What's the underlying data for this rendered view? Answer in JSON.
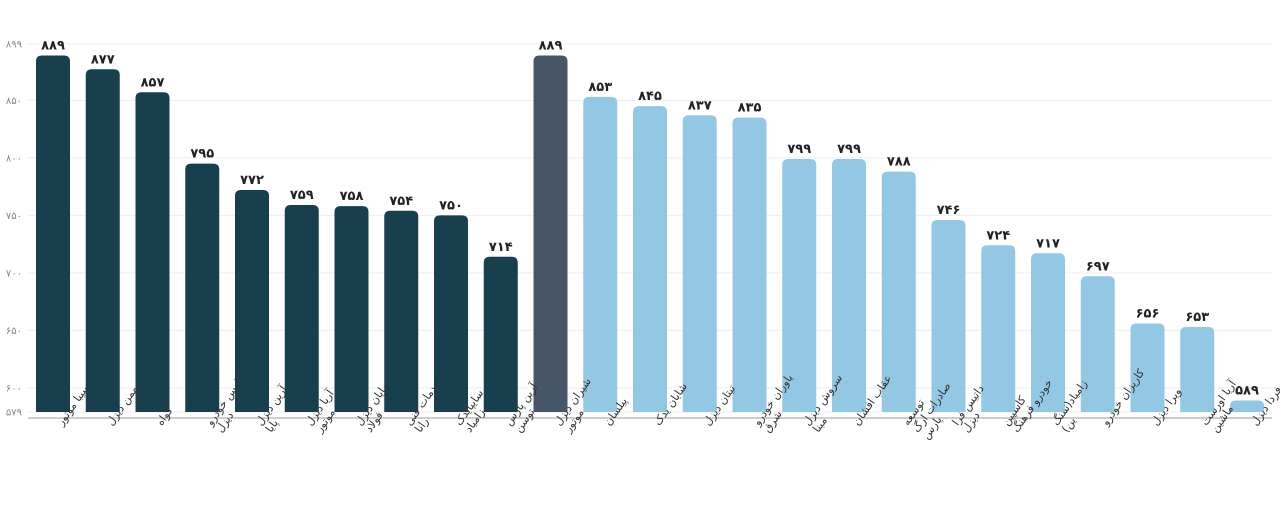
{
  "chart_data": {
    "type": "bar",
    "title": "",
    "xlabel": "",
    "ylabel": "",
    "ylim": [
      579,
      899
    ],
    "yticks": [
      579,
      600,
      650,
      700,
      750,
      800,
      850,
      899
    ],
    "ytick_labels": [
      "۵۷۹",
      "۶۰۰",
      "۶۵۰",
      "۷۰۰",
      "۷۵۰",
      "۸۰۰",
      "۸۵۰",
      "۸۹۹"
    ],
    "grid": true,
    "colors": {
      "group1": "#173f4e",
      "highlight": "#465668",
      "group2": "#93c8e4"
    },
    "categories": [
      [
        "سیبا موتور"
      ],
      [
        "بهمن دیزل"
      ],
      [
        "گواه"
      ],
      [
        "ارس خودرو",
        "دیزل"
      ],
      [
        "آرین دیزل",
        "پایا"
      ],
      [
        "آریا دیزل",
        "موتور"
      ],
      [
        "مایان دیزل",
        "فولاد"
      ],
      [
        "خدمات فنی",
        "رانا"
      ],
      [
        "سایپایدک",
        "زامیاد"
      ],
      [
        "آرین پارس",
        "توسن"
      ],
      [
        "شیران دیزل",
        "موتور"
      ],
      [
        "پیلسان"
      ],
      [
        "شایان یدک"
      ],
      [
        "تیتان دیزل"
      ],
      [
        "یاوران خودرو",
        "شرق"
      ],
      [
        "سروش دیزل",
        "مبنا"
      ],
      [
        "عقاب افشان"
      ],
      [
        "توسعه",
        "صادرات ارگ",
        "پارس"
      ],
      [
        "داتیس فرا",
        "دیزل"
      ],
      [
        "کاسپین",
        "خودرو فرهنگ"
      ],
      [
        "زامیاد(سنگ",
        "ین)"
      ],
      [
        "کاریزان خودرو"
      ],
      [
        "ویرا دیزل"
      ],
      [
        "آریا اورست",
        "ماشین"
      ],
      [
        "فردا دیزل"
      ]
    ],
    "values": [
      889,
      877,
      857,
      795,
      772,
      759,
      758,
      754,
      750,
      714,
      889,
      853,
      845,
      837,
      835,
      799,
      799,
      788,
      746,
      724,
      717,
      697,
      656,
      653,
      589
    ],
    "value_labels": [
      "۸۸۹",
      "۸۷۷",
      "۸۵۷",
      "۷۹۵",
      "۷۷۲",
      "۷۵۹",
      "۷۵۸",
      "۷۵۴",
      "۷۵۰",
      "۷۱۴",
      "۸۸۹",
      "۸۵۳",
      "۸۴۵",
      "۸۳۷",
      "۸۳۵",
      "۷۹۹",
      "۷۹۹",
      "۷۸۸",
      "۷۴۶",
      "۷۲۴",
      "۷۱۷",
      "۶۹۷",
      "۶۵۶",
      "۶۵۳",
      "۵۸۹"
    ],
    "bar_groups": [
      "group1",
      "group1",
      "group1",
      "group1",
      "group1",
      "group1",
      "group1",
      "group1",
      "group1",
      "group1",
      "highlight",
      "group2",
      "group2",
      "group2",
      "group2",
      "group2",
      "group2",
      "group2",
      "group2",
      "group2",
      "group2",
      "group2",
      "group2",
      "group2",
      "group2"
    ]
  }
}
